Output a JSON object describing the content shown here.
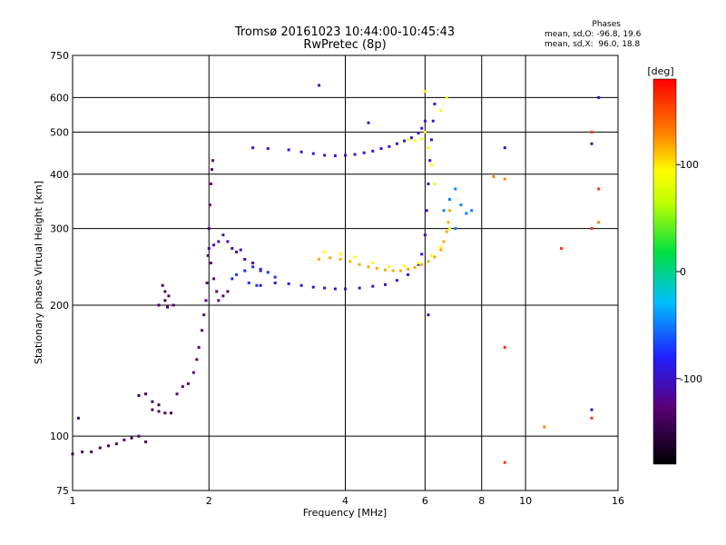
{
  "chart_data": {
    "type": "scatter",
    "title": "Tromsø 20161023 10:44:00-10:45:43",
    "subtitle": "RwPretec (8p)",
    "xlabel": "Frequency [MHz]",
    "ylabel": "Stationary phase Virtual Height [km]",
    "xscale": "log",
    "yscale": "log",
    "xlim": [
      1,
      16
    ],
    "ylim": [
      75,
      750
    ],
    "x_ticks": [
      1,
      2,
      4,
      6,
      8,
      10,
      16
    ],
    "y_ticks": [
      75,
      100,
      200,
      300,
      400,
      500,
      600,
      750
    ],
    "grid": true,
    "stats": {
      "header": "Phases",
      "o_line": "mean, sd,O: -96.8, 19.6",
      "x_line": "mean, sd,X:  96.0, 18.8"
    },
    "colorbar": {
      "label": "[deg]",
      "range": [
        -180,
        180
      ],
      "ticks": [
        {
          "value": 100,
          "label": "100"
        },
        {
          "value": 0,
          "label": "0"
        },
        {
          "value": -100,
          "label": "-100"
        }
      ]
    },
    "traces": [
      {
        "name": "",
        "phase": -140,
        "points": [
          [
            1.0,
            91
          ],
          [
            1.05,
            92
          ],
          [
            1.1,
            92
          ],
          [
            1.15,
            94
          ],
          [
            1.2,
            95
          ],
          [
            1.25,
            96
          ],
          [
            1.3,
            98
          ],
          [
            1.35,
            99
          ],
          [
            1.4,
            100
          ],
          [
            1.03,
            110
          ],
          [
            1.45,
            97
          ]
        ]
      },
      {
        "name": "",
        "phase": -145,
        "points": [
          [
            1.5,
            115
          ],
          [
            1.55,
            114
          ],
          [
            1.6,
            113
          ],
          [
            1.65,
            113
          ],
          [
            1.5,
            120
          ],
          [
            1.55,
            118
          ],
          [
            1.45,
            125
          ],
          [
            1.4,
            124
          ]
        ]
      },
      {
        "name": "",
        "phase": -140,
        "points": [
          [
            1.55,
            200
          ],
          [
            1.6,
            205
          ],
          [
            1.63,
            210
          ],
          [
            1.6,
            215
          ],
          [
            1.58,
            222
          ],
          [
            1.62,
            198
          ],
          [
            1.67,
            200
          ]
        ]
      },
      {
        "name": "",
        "phase": -130,
        "points": [
          [
            1.7,
            125
          ],
          [
            1.75,
            130
          ],
          [
            1.8,
            132
          ],
          [
            1.85,
            140
          ],
          [
            1.88,
            150
          ],
          [
            1.9,
            160
          ],
          [
            1.93,
            175
          ],
          [
            1.95,
            190
          ],
          [
            1.97,
            205
          ],
          [
            1.98,
            225
          ],
          [
            1.99,
            260
          ],
          [
            2.0,
            300
          ],
          [
            2.01,
            340
          ],
          [
            2.02,
            380
          ],
          [
            2.03,
            410
          ],
          [
            2.04,
            430
          ],
          [
            2.02,
            250
          ],
          [
            2.05,
            230
          ],
          [
            2.08,
            215
          ],
          [
            2.1,
            205
          ],
          [
            2.15,
            210
          ],
          [
            2.2,
            215
          ]
        ]
      },
      {
        "name": "",
        "phase": -115,
        "points": [
          [
            2.0,
            270
          ],
          [
            2.05,
            275
          ],
          [
            2.1,
            280
          ],
          [
            2.15,
            290
          ],
          [
            2.2,
            280
          ],
          [
            2.25,
            270
          ],
          [
            2.3,
            265
          ],
          [
            2.35,
            268
          ],
          [
            2.4,
            255
          ],
          [
            2.5,
            250
          ],
          [
            2.6,
            240
          ]
        ]
      },
      {
        "name": "",
        "phase": -85,
        "points": [
          [
            2.25,
            230
          ],
          [
            2.3,
            235
          ],
          [
            2.4,
            240
          ],
          [
            2.5,
            245
          ],
          [
            2.6,
            242
          ],
          [
            2.7,
            238
          ],
          [
            2.8,
            232
          ],
          [
            2.45,
            225
          ],
          [
            2.55,
            222
          ]
        ]
      },
      {
        "name": "",
        "phase": -105,
        "points": [
          [
            2.6,
            222
          ],
          [
            2.8,
            225
          ],
          [
            3.0,
            224
          ],
          [
            3.2,
            222
          ],
          [
            3.4,
            220
          ],
          [
            3.6,
            219
          ],
          [
            3.8,
            218
          ],
          [
            4.0,
            218
          ],
          [
            4.3,
            219
          ],
          [
            4.6,
            221
          ],
          [
            4.9,
            223
          ],
          [
            5.2,
            228
          ],
          [
            5.5,
            235
          ],
          [
            5.8,
            248
          ],
          [
            5.9,
            262
          ],
          [
            6.0,
            290
          ],
          [
            6.05,
            330
          ],
          [
            6.1,
            380
          ],
          [
            6.15,
            430
          ],
          [
            6.2,
            480
          ],
          [
            6.25,
            530
          ],
          [
            6.3,
            580
          ]
        ]
      },
      {
        "name": "",
        "phase": -100,
        "points": [
          [
            2.5,
            460
          ],
          [
            2.7,
            458
          ],
          [
            3.0,
            455
          ],
          [
            3.2,
            450
          ],
          [
            3.4,
            446
          ],
          [
            3.6,
            442
          ],
          [
            3.8,
            441
          ],
          [
            4.0,
            442
          ],
          [
            4.2,
            444
          ],
          [
            4.4,
            448
          ],
          [
            4.6,
            452
          ],
          [
            4.8,
            458
          ],
          [
            5.0,
            463
          ],
          [
            5.2,
            470
          ],
          [
            5.4,
            477
          ],
          [
            5.6,
            485
          ],
          [
            5.8,
            497
          ],
          [
            5.9,
            510
          ],
          [
            6.0,
            530
          ]
        ]
      },
      {
        "name": "",
        "phase": 120,
        "points": [
          [
            3.5,
            255
          ],
          [
            3.7,
            257
          ],
          [
            3.9,
            255
          ],
          [
            4.1,
            252
          ],
          [
            4.3,
            248
          ],
          [
            4.5,
            245
          ],
          [
            4.7,
            243
          ],
          [
            4.9,
            241
          ],
          [
            5.1,
            240
          ],
          [
            5.3,
            240
          ],
          [
            5.5,
            242
          ],
          [
            5.7,
            244
          ],
          [
            5.9,
            248
          ],
          [
            6.1,
            252
          ],
          [
            6.3,
            258
          ],
          [
            6.5,
            268
          ],
          [
            6.6,
            280
          ],
          [
            6.7,
            295
          ],
          [
            6.75,
            310
          ],
          [
            6.8,
            330
          ]
        ]
      },
      {
        "name": "",
        "phase": 100,
        "points": [
          [
            3.6,
            265
          ],
          [
            3.9,
            262
          ],
          [
            4.2,
            258
          ],
          [
            4.6,
            250
          ],
          [
            5.0,
            245
          ],
          [
            5.4,
            246
          ],
          [
            5.8,
            250
          ],
          [
            6.2,
            260
          ],
          [
            6.5,
            272
          ],
          [
            6.8,
            300
          ]
        ]
      },
      {
        "name": "",
        "phase": 95,
        "points": [
          [
            5.5,
            480
          ],
          [
            5.7,
            478
          ],
          [
            5.9,
            482
          ],
          [
            6.0,
            500
          ],
          [
            6.1,
            460
          ],
          [
            6.2,
            420
          ],
          [
            6.3,
            380
          ],
          [
            6.0,
            620
          ],
          [
            6.5,
            560
          ],
          [
            6.7,
            600
          ]
        ]
      },
      {
        "name": "",
        "phase": -60,
        "points": [
          [
            6.6,
            330
          ],
          [
            6.8,
            350
          ],
          [
            7.0,
            370
          ],
          [
            7.2,
            340
          ],
          [
            7.4,
            325
          ],
          [
            7.0,
            300
          ],
          [
            7.6,
            330
          ]
        ]
      },
      {
        "name": "",
        "phase": -110,
        "points": [
          [
            3.5,
            640
          ],
          [
            4.5,
            525
          ],
          [
            6.1,
            190
          ],
          [
            9.0,
            460
          ],
          [
            14.0,
            470
          ],
          [
            14.5,
            600
          ],
          [
            14.0,
            115
          ]
        ]
      },
      {
        "name": "",
        "phase": 160,
        "points": [
          [
            9.0,
            87
          ],
          [
            14.0,
            500
          ],
          [
            14.5,
            370
          ],
          [
            14.0,
            300
          ],
          [
            12.0,
            270
          ],
          [
            9.0,
            160
          ],
          [
            14.0,
            110
          ]
        ]
      },
      {
        "name": "",
        "phase": 130,
        "points": [
          [
            9.0,
            390
          ],
          [
            14.5,
            310
          ],
          [
            11.0,
            105
          ],
          [
            8.5,
            395
          ]
        ]
      }
    ]
  }
}
